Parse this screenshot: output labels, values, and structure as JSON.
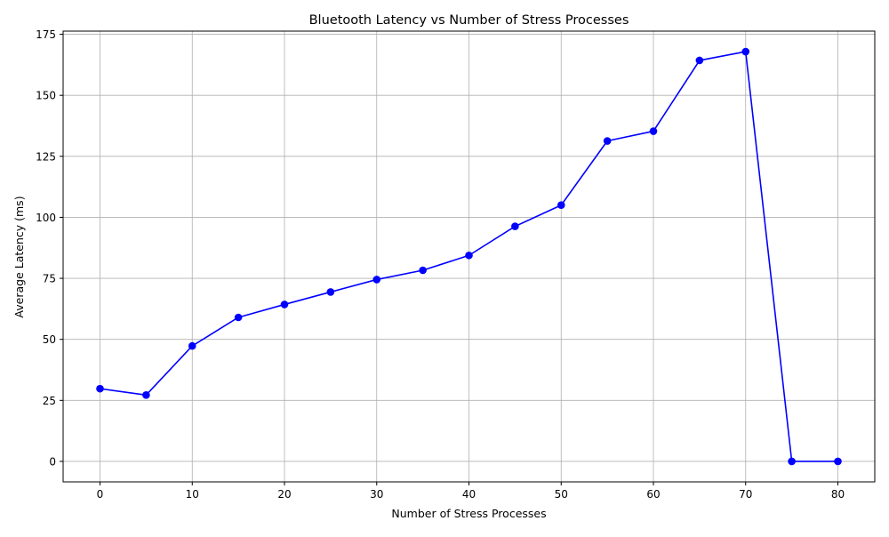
{
  "chart_data": {
    "type": "line",
    "title": "Bluetooth Latency vs Number of Stress Processes",
    "xlabel": "Number of Stress Processes",
    "ylabel": "Average Latency (ms)",
    "x": [
      0,
      5,
      10,
      15,
      20,
      25,
      30,
      35,
      40,
      45,
      50,
      55,
      60,
      65,
      70,
      75,
      80
    ],
    "series": [
      {
        "values": [
          29.8,
          27.2,
          47.3,
          59.0,
          64.3,
          69.4,
          74.5,
          78.3,
          84.4,
          96.3,
          105.0,
          131.3,
          135.3,
          164.3,
          167.9,
          0.0,
          0.0
        ]
      }
    ],
    "xlim": [
      -4,
      84
    ],
    "ylim": [
      -8.4,
      176.3
    ],
    "xticks": [
      0,
      10,
      20,
      30,
      40,
      50,
      60,
      70,
      80
    ],
    "yticks": [
      0,
      25,
      50,
      75,
      100,
      125,
      150,
      175
    ],
    "grid": true,
    "colors": {
      "line": "#0000ff",
      "marker": "#0000ff",
      "grid": "#b0b0b0",
      "axes": "#000000"
    }
  }
}
